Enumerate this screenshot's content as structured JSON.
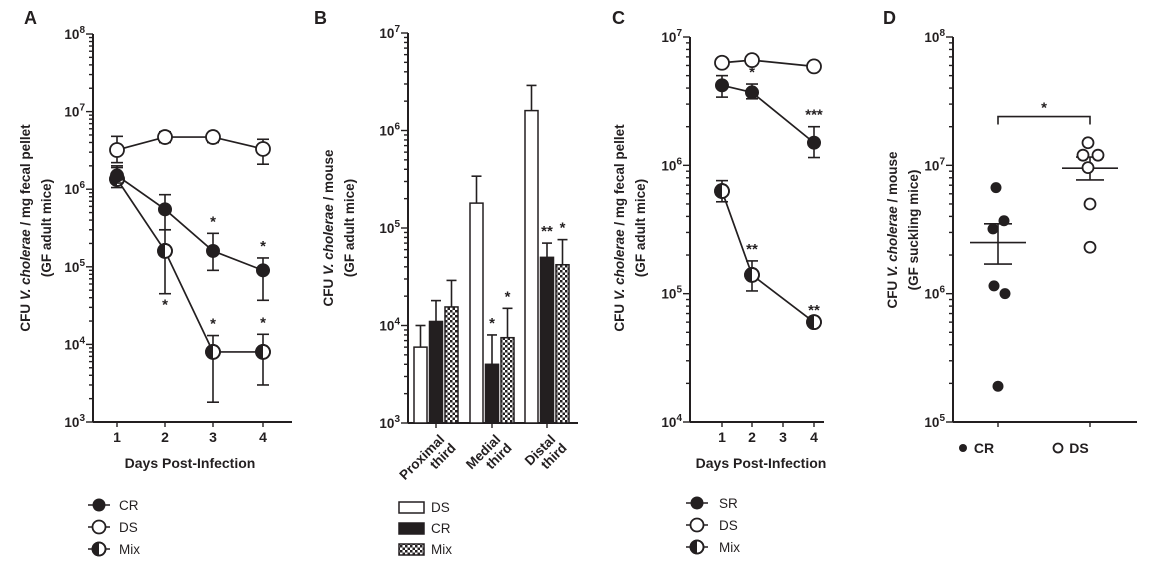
{
  "ink": "#231f20",
  "chart_data": [
    {
      "label": "A",
      "type": "line",
      "ylabel": {
        "pre": "CFU ",
        "italic": "V. cholerae",
        "post": " / mg fecal pellet",
        "line2": "(GF adult mice)"
      },
      "xlabel": "Days Post-Infection",
      "y_axis": {
        "scale": "log",
        "min": 1000.0,
        "max": 100000000.0,
        "tick_exponents": [
          8,
          7,
          6,
          5,
          4,
          3
        ]
      },
      "x_ticks": [
        "1",
        "2",
        "3",
        "4"
      ],
      "series": [
        {
          "name": "DS",
          "marker": "open",
          "x": [
            1,
            2,
            3,
            4
          ],
          "y": [
            3200000.0,
            4700000.0,
            4700000.0,
            3300000.0
          ],
          "err": [
            [
              2200000.0,
              4800000.0
            ],
            [
              4000000.0,
              5500000.0
            ],
            [
              4000000.0,
              5300000.0
            ],
            [
              2100000.0,
              4400000.0
            ]
          ],
          "sig": [
            null,
            null,
            null,
            null
          ],
          "sig_side": [
            null,
            null,
            null,
            null
          ]
        },
        {
          "name": "Mix",
          "marker": "half",
          "x": [
            1,
            2,
            3,
            4
          ],
          "y": [
            1350000.0,
            160000.0,
            8000.0,
            8000.0
          ],
          "err": [
            [
              1050000.0,
              1900000.0
            ],
            [
              45000.0,
              300000.0
            ],
            [
              1800.0,
              13000.0
            ],
            [
              3000.0,
              13500.0
            ]
          ],
          "sig": [
            null,
            "*",
            "*",
            "*"
          ],
          "sig_side": [
            null,
            "below",
            "above",
            "above"
          ]
        },
        {
          "name": "CR",
          "marker": "filled",
          "x": [
            1,
            2,
            3,
            4
          ],
          "y": [
            1500000.0,
            550000.0,
            160000.0,
            90000.0
          ],
          "err": [
            [
              1200000.0,
              2000000.0
            ],
            [
              300000.0,
              850000.0
            ],
            [
              90000.0,
              270000.0
            ],
            [
              37000.0,
              130000.0
            ]
          ],
          "sig": [
            null,
            null,
            "*",
            "*"
          ],
          "sig_side": [
            null,
            null,
            "above",
            "above"
          ]
        }
      ],
      "legend": [
        {
          "label": "CR",
          "marker": "filled"
        },
        {
          "label": "DS",
          "marker": "open"
        },
        {
          "label": "Mix",
          "marker": "half"
        }
      ]
    },
    {
      "label": "B",
      "type": "bar",
      "ylabel": {
        "pre": "CFU ",
        "italic": "V. cholerae",
        "post": " / mouse",
        "line2": "(GF adult mice)"
      },
      "y_axis": {
        "scale": "log",
        "min": 1000.0,
        "max": 10000000.0,
        "tick_exponents": [
          7,
          6,
          5,
          4,
          3
        ]
      },
      "categories": [
        [
          "Proximal",
          "third"
        ],
        [
          "Medial",
          "third"
        ],
        [
          "Distal",
          "third"
        ]
      ],
      "series": [
        {
          "name": "DS",
          "fill": "white",
          "values": [
            6000.0,
            180000.0,
            1600000.0
          ],
          "err_hi": [
            10000.0,
            340000.0,
            2900000.0
          ],
          "sig": [
            null,
            null,
            null
          ]
        },
        {
          "name": "CR",
          "fill": "black",
          "values": [
            11000.0,
            4000.0,
            50000.0
          ],
          "err_hi": [
            18000.0,
            8000.0,
            70000.0
          ],
          "sig": [
            null,
            "*",
            "**"
          ]
        },
        {
          "name": "Mix",
          "fill": "checker",
          "values": [
            15500.0,
            7500.0,
            42000.0
          ],
          "err_hi": [
            29000.0,
            15000.0,
            76000.0
          ],
          "sig": [
            null,
            "*",
            "*"
          ]
        }
      ],
      "legend": [
        {
          "label": "DS",
          "fill": "white"
        },
        {
          "label": "CR",
          "fill": "black"
        },
        {
          "label": "Mix",
          "fill": "checker"
        }
      ]
    },
    {
      "label": "C",
      "type": "line",
      "ylabel": {
        "pre": "CFU ",
        "italic": "V. cholerae",
        "post": " / mg fecal pellet",
        "line2": "(GF adult mice)"
      },
      "xlabel": "Days Post-Infection",
      "y_axis": {
        "scale": "log",
        "min": 10000.0,
        "max": 10000000.0,
        "tick_exponents": [
          7,
          6,
          5,
          4
        ]
      },
      "x_ticks": [
        "1",
        "2",
        "3",
        "4"
      ],
      "series": [
        {
          "name": "DS",
          "marker": "open",
          "x": [
            1,
            2,
            4
          ],
          "y": [
            6300000.0,
            6600000.0,
            5900000.0
          ],
          "err": [
            null,
            null,
            null
          ],
          "sig": [
            null,
            null,
            null
          ],
          "sig_side": [
            null,
            null,
            null
          ]
        },
        {
          "name": "SR",
          "marker": "filled",
          "x": [
            1,
            2,
            4
          ],
          "y": [
            4200000.0,
            3700000.0,
            1500000.0
          ],
          "err": [
            [
              3400000.0,
              5000000.0
            ],
            [
              3300000.0,
              4300000.0
            ],
            [
              1150000.0,
              2000000.0
            ]
          ],
          "sig": [
            null,
            "*",
            "***"
          ],
          "sig_side": [
            null,
            "above",
            "above"
          ]
        },
        {
          "name": "Mix",
          "marker": "half",
          "x": [
            1,
            2,
            4
          ],
          "y": [
            630000.0,
            140000.0,
            60000.0
          ],
          "err": [
            [
              520000.0,
              760000.0
            ],
            [
              105000.0,
              180000.0
            ],
            null
          ],
          "sig": [
            null,
            "**",
            "**"
          ],
          "sig_side": [
            null,
            "above",
            "above"
          ]
        }
      ],
      "legend": [
        {
          "label": "SR",
          "marker": "filled"
        },
        {
          "label": "DS",
          "marker": "open"
        },
        {
          "label": "Mix",
          "marker": "half"
        }
      ]
    },
    {
      "label": "D",
      "type": "scatter",
      "ylabel": {
        "pre": "CFU ",
        "italic": "V. cholerae",
        "post": " / mouse",
        "line2": "(GF suckling mice)"
      },
      "y_axis": {
        "scale": "log",
        "min": 100000.0,
        "max": 100000000.0,
        "tick_exponents": [
          8,
          7,
          6,
          5
        ]
      },
      "groups": [
        {
          "name": "CR",
          "marker": "filled",
          "mean": 2500000.0,
          "sem": [
            1700000.0,
            3500000.0
          ],
          "points": [
            {
              "v": 6700000.0,
              "dx": -2
            },
            {
              "v": 3700000.0,
              "dx": 6
            },
            {
              "v": 3200000.0,
              "dx": -5
            },
            {
              "v": 1150000.0,
              "dx": -4
            },
            {
              "v": 1000000.0,
              "dx": 7
            },
            {
              "v": 190000.0,
              "dx": 0
            }
          ]
        },
        {
          "name": "DS",
          "marker": "open",
          "mean": 9500000.0,
          "sem": [
            7700000.0,
            11600000.0
          ],
          "points": [
            {
              "v": 15000000.0,
              "dx": -2
            },
            {
              "v": 12000000.0,
              "dx": -7
            },
            {
              "v": 12000000.0,
              "dx": 8
            },
            {
              "v": 9600000.0,
              "dx": -2
            },
            {
              "v": 5000000.0,
              "dx": 0
            },
            {
              "v": 2300000.0,
              "dx": 0
            }
          ]
        }
      ],
      "bracket": {
        "y": 24000000.0,
        "label": "*"
      },
      "legend": [
        {
          "label": "CR",
          "marker": "filled"
        },
        {
          "label": "DS",
          "marker": "open"
        }
      ]
    }
  ]
}
